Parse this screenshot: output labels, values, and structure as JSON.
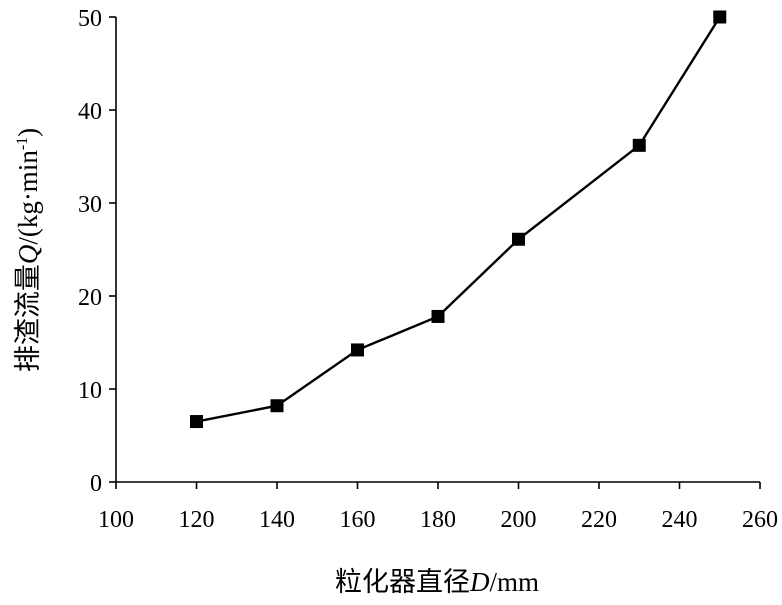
{
  "chart_data": {
    "type": "line",
    "xlabel": {
      "prefix": "粒化器直径",
      "var": "D",
      "suffix": "/mm"
    },
    "ylabel": {
      "prefix": "排渣流量",
      "var": "Q",
      "unit": "/(kg·min",
      "sup": "-1",
      "close": ")"
    },
    "xlim": [
      100,
      260
    ],
    "ylim": [
      0,
      50
    ],
    "xticks": [
      100,
      120,
      140,
      160,
      180,
      200,
      220,
      240,
      260
    ],
    "yticks": [
      0,
      10,
      20,
      30,
      40,
      50
    ],
    "grid": false,
    "series": [
      {
        "x": [
          120,
          140,
          160,
          180,
          200,
          230,
          250
        ],
        "y": [
          6.5,
          8.2,
          14.2,
          17.8,
          26.1,
          36.2,
          50.0
        ],
        "marker": "square",
        "color": "#000000"
      }
    ]
  }
}
